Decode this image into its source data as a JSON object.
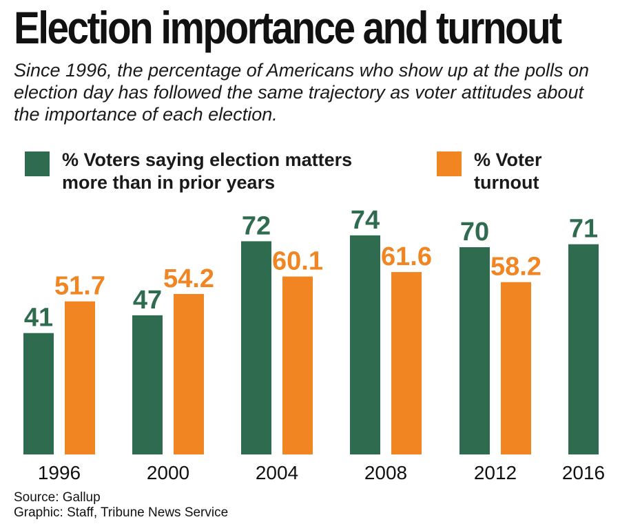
{
  "header": {
    "title": "Election importance and turnout",
    "subtitle": "Since 1996, the percentage of Americans who show up at the polls on election day has followed the same trajectory as voter attitudes about the importance of each election."
  },
  "legend": {
    "importance_label": "% Voters saying election matters more than in prior years",
    "turnout_label": "% Voter turnout"
  },
  "colors": {
    "importance": "#2e6b4f",
    "turnout": "#f08522"
  },
  "footer": {
    "source": "Source: Gallup",
    "credit": "Graphic: Staff, Tribune News Service"
  },
  "chart_data": {
    "type": "bar",
    "title": "Election importance and turnout",
    "categories": [
      "1996",
      "2000",
      "2004",
      "2008",
      "2012",
      "2016"
    ],
    "series": [
      {
        "name": "% Voters saying election matters more than in prior years",
        "values": [
          41,
          47,
          72,
          74,
          70,
          71
        ],
        "labels": [
          "41",
          "47",
          "72",
          "74",
          "70",
          "71"
        ]
      },
      {
        "name": "% Voter turnout",
        "values": [
          51.7,
          54.2,
          60.1,
          61.6,
          58.2,
          null
        ],
        "labels": [
          "51.7",
          "54.2",
          "60.1",
          "61.6",
          "58.2",
          null
        ]
      }
    ],
    "xlabel": "",
    "ylabel": "",
    "grid": false,
    "legend_position": "top"
  }
}
